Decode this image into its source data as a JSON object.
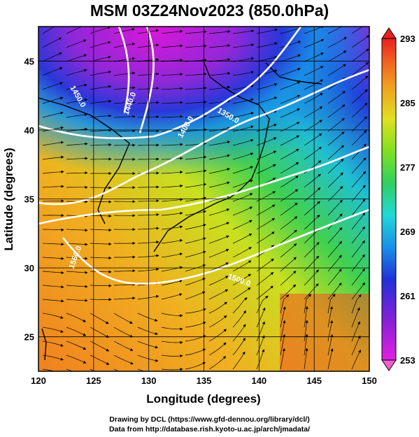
{
  "title": "MSM 03Z24Nov2023 (850.0hPa)",
  "credits": [
    "Drawing by DCL (https://www.gfd-dennou.org/library/dcl/)",
    "Data from http://database.rish.kyoto-u.ac.jp/arch/jmadata/"
  ],
  "chart_data": {
    "type": "heatmap",
    "title": "MSM 03Z24Nov2023 (850.0hPa)",
    "xlabel": "Longitude (degrees)",
    "ylabel": "Latitude  (degrees)",
    "xlim": [
      120,
      150
    ],
    "ylim": [
      22.5,
      47.5
    ],
    "xticks": [
      "120",
      "125",
      "130",
      "135",
      "140",
      "145",
      "150"
    ],
    "yticks": [
      "25",
      "30",
      "35",
      "40",
      "45"
    ],
    "grid": true,
    "colorbar": {
      "min": 253,
      "max": 293,
      "tick_labels": [
        "293",
        "285",
        "277",
        "269",
        "261",
        "253"
      ],
      "colors": [
        "#e020e0",
        "#8a20d8",
        "#2030d8",
        "#1890e8",
        "#20d8d8",
        "#30d060",
        "#80e020",
        "#e0e020",
        "#f0a020",
        "#f06020",
        "#e82020"
      ]
    },
    "contours": [
      {
        "label": "1350.0"
      },
      {
        "label": "1400.0"
      },
      {
        "label": "1440.0"
      },
      {
        "label": "1450.0"
      },
      {
        "label": "1500.0"
      },
      {
        "label": "1560.0"
      }
    ]
  }
}
